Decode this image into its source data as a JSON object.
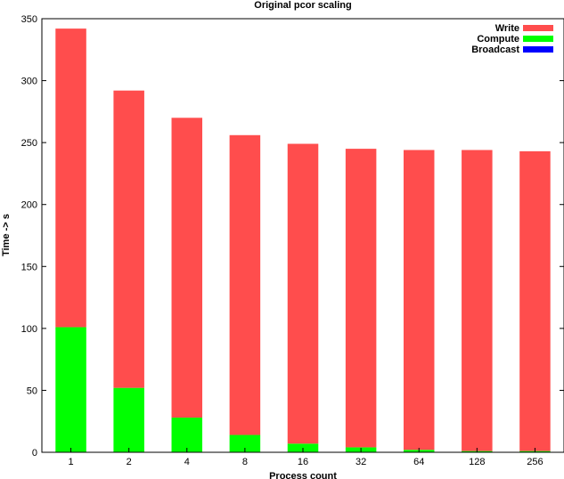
{
  "chart_data": {
    "type": "bar",
    "stacked": true,
    "title": "Original pcor scaling",
    "xlabel": "Process count",
    "ylabel": "Time -> s",
    "ylim": [
      0,
      350
    ],
    "yticks": [
      "0",
      "50",
      "100",
      "150",
      "200",
      "250",
      "300",
      "350"
    ],
    "categories": [
      "1",
      "2",
      "4",
      "8",
      "16",
      "32",
      "64",
      "128",
      "256"
    ],
    "legend_position": "top-right",
    "grid": false,
    "series": [
      {
        "name": "Broadcast",
        "color": "#0000ff",
        "values": [
          0,
          0,
          0,
          0,
          0,
          0,
          0,
          0,
          0
        ]
      },
      {
        "name": "Compute",
        "color": "#00ff00",
        "values": [
          101,
          52,
          28,
          14,
          7,
          4,
          2,
          1,
          1
        ]
      },
      {
        "name": "Write",
        "color": "#ff4d4d",
        "values": [
          241,
          240,
          242,
          242,
          242,
          241,
          242,
          243,
          242
        ]
      }
    ],
    "legend_order": [
      "Write",
      "Compute",
      "Broadcast"
    ]
  }
}
